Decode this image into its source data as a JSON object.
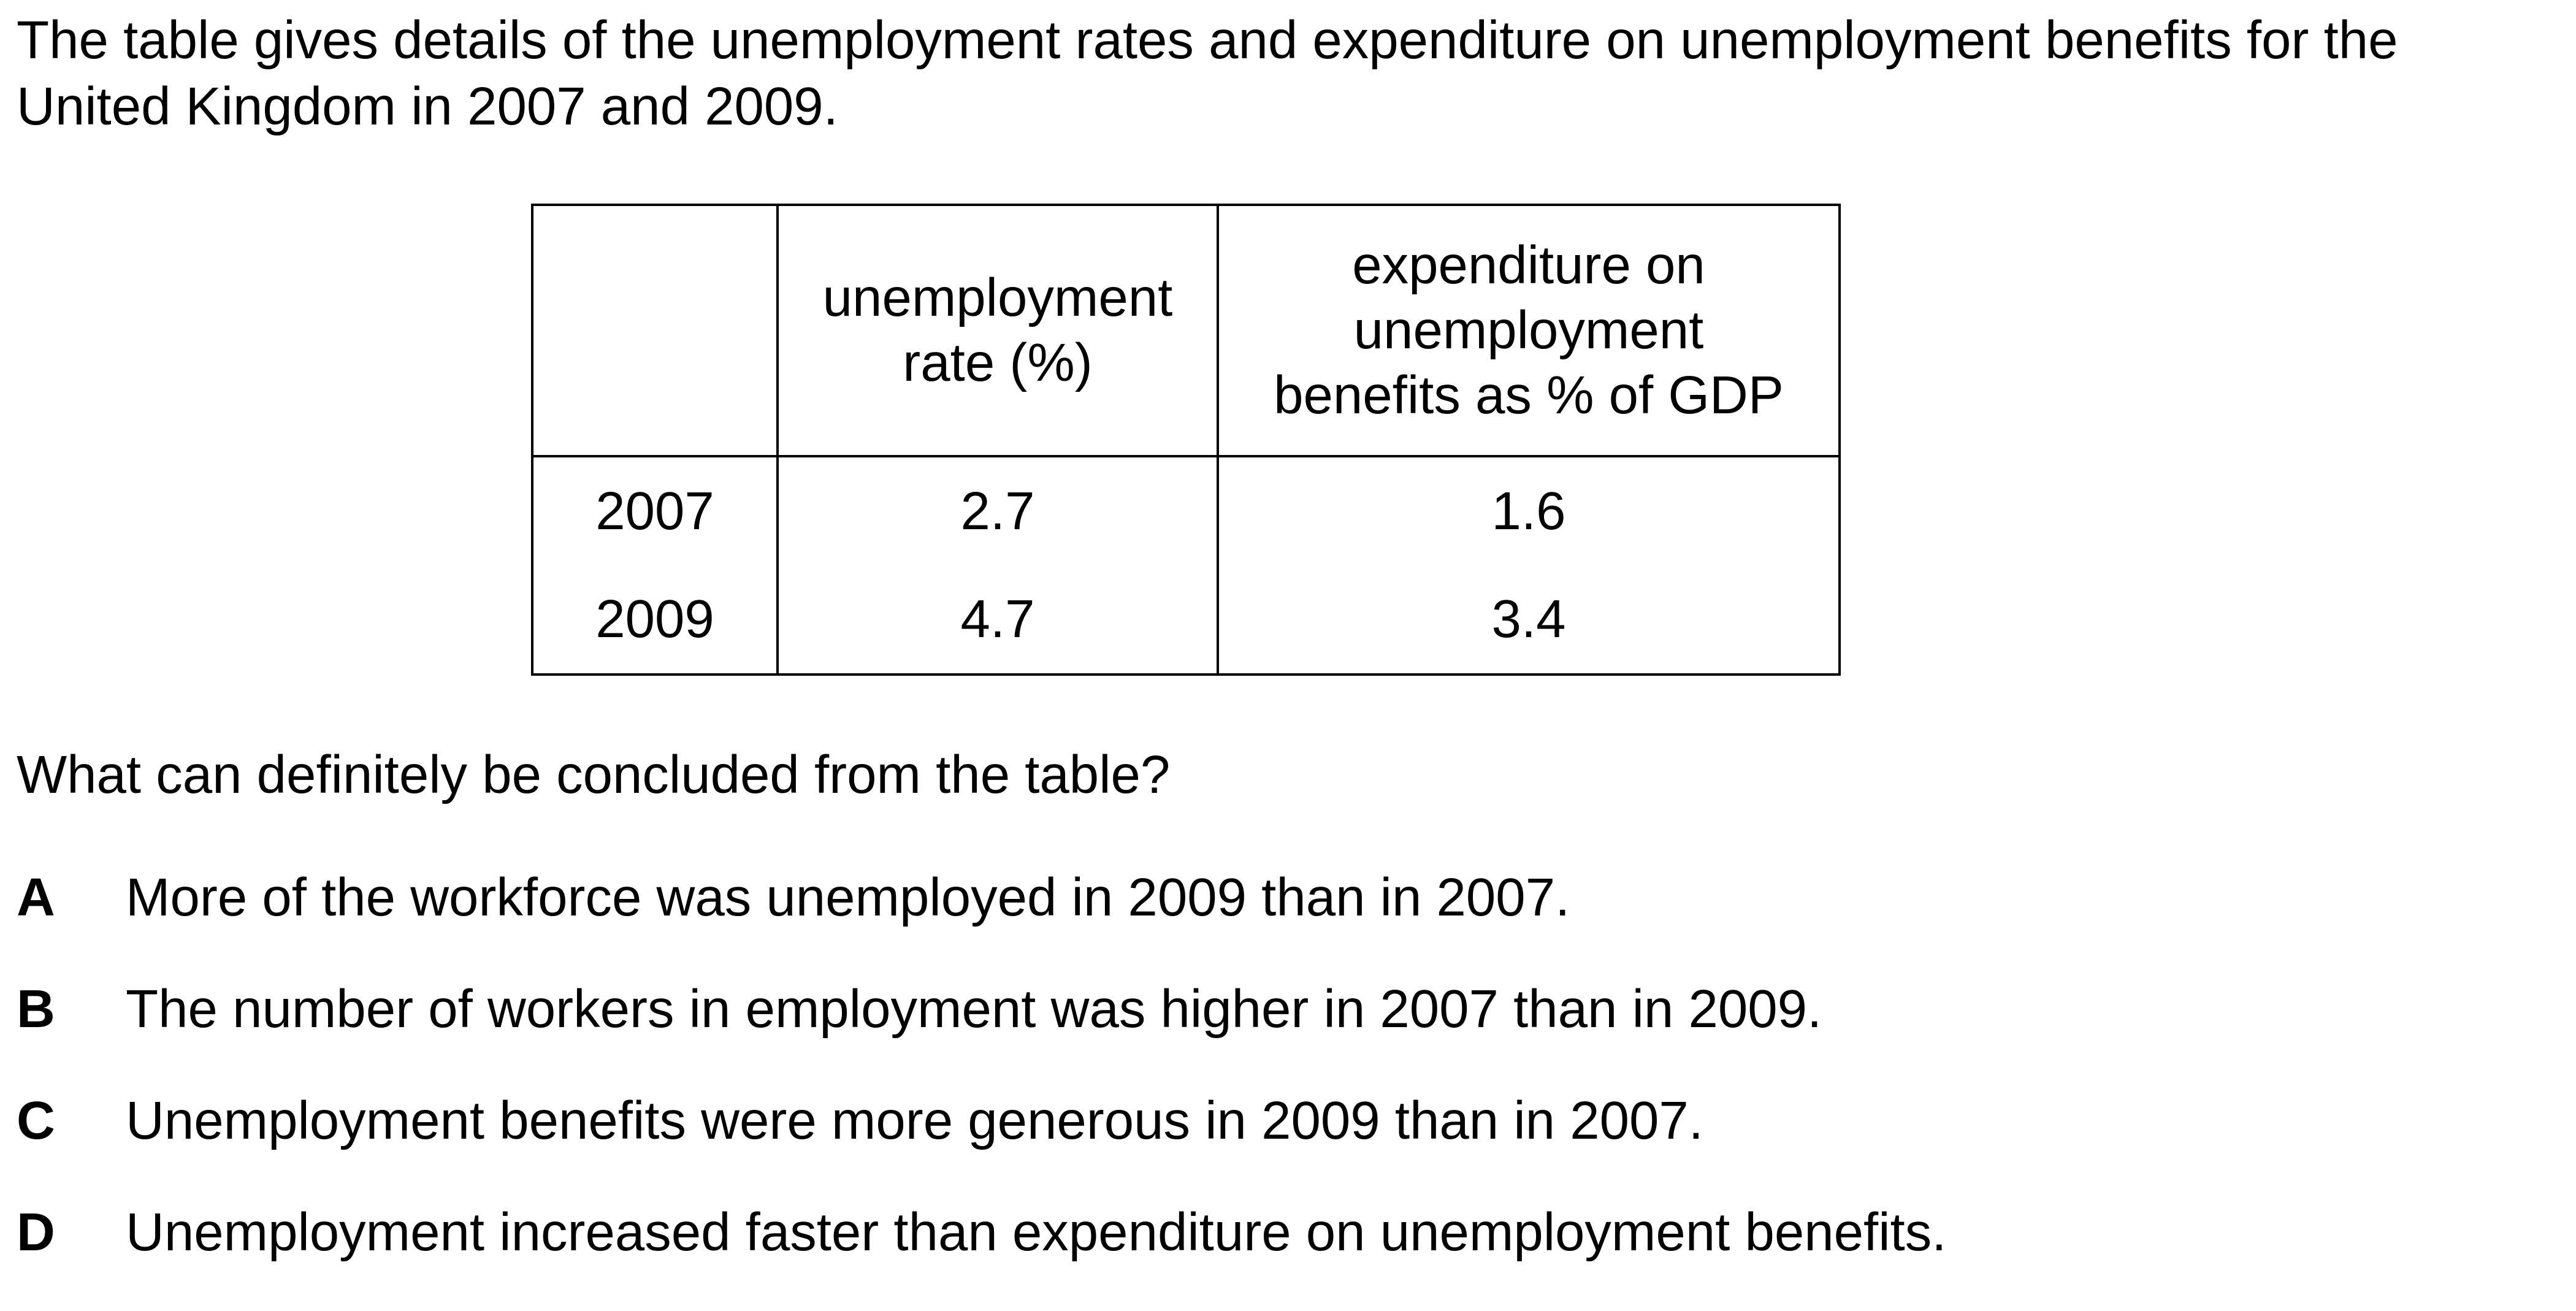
{
  "intro": "The table gives details of the unemployment rates and expenditure on unemployment benefits for the United Kingdom in 2007 and 2009.",
  "table": {
    "headers": {
      "year": "",
      "rate": [
        "unemployment",
        "rate (%)"
      ],
      "expenditure": [
        "expenditure on",
        "unemployment",
        "benefits as % of GDP"
      ]
    },
    "rows": [
      {
        "year": "2007",
        "rate": "2.7",
        "expenditure": "1.6"
      },
      {
        "year": "2009",
        "rate": "4.7",
        "expenditure": "3.4"
      }
    ]
  },
  "question": "What can definitely be concluded from the table?",
  "options": [
    {
      "letter": "A",
      "text": "More of the workforce was unemployed in 2009 than in 2007."
    },
    {
      "letter": "B",
      "text": "The number of workers in employment was higher in 2007 than in 2009."
    },
    {
      "letter": "C",
      "text": "Unemployment benefits were more generous in 2009 than in 2007."
    },
    {
      "letter": "D",
      "text": "Unemployment increased faster than expenditure on unemployment benefits."
    }
  ]
}
